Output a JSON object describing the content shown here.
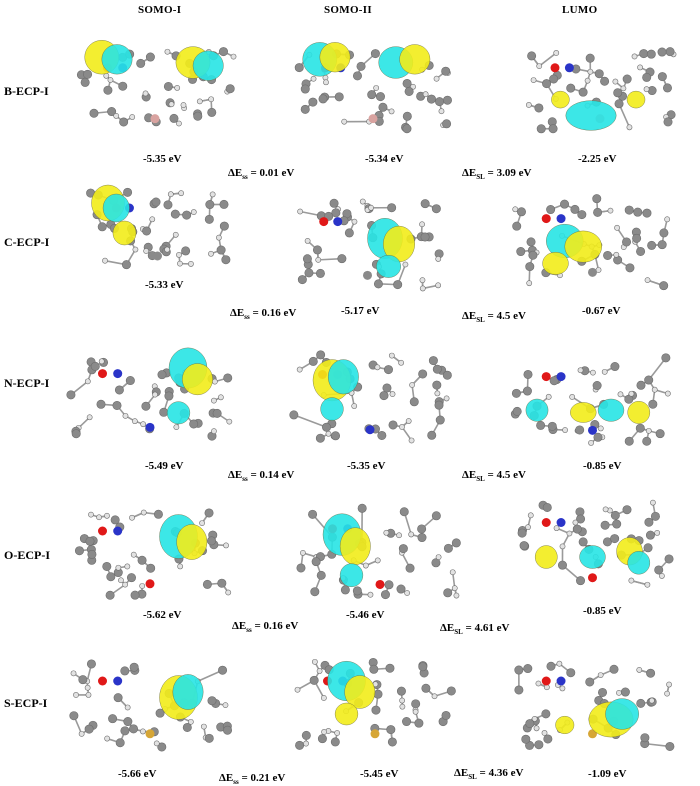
{
  "columns": [
    "SOMO-I",
    "SOMO-II",
    "LUMO"
  ],
  "colors": {
    "lobe_cyan": "#27e4e4",
    "lobe_yellow": "#f2ec1a",
    "carbon": "#8a8a8a",
    "hydrogen": "#e2e2e2",
    "oxygen": "#e01818",
    "nitrogen": "#2a34c8",
    "boron": "#d9a3a0",
    "sulfur": "#d6a636"
  },
  "rows": [
    {
      "label": "B-ECP-I",
      "energies": [
        "-5.35 eV",
        "-5.34 eV",
        "-2.25 eV"
      ],
      "dss": {
        "sym": "ΔE",
        "sub": "ss",
        "value": "= 0.01 eV"
      },
      "dsl": {
        "sym": "ΔE",
        "sub": "SL",
        "value": "= 3.09 eV"
      }
    },
    {
      "label": "C-ECP-I",
      "energies": [
        "-5.33 eV",
        "-5.17 eV",
        "-0.67 eV"
      ],
      "dss": {
        "sym": "ΔE",
        "sub": "ss",
        "value": "= 0.16 eV"
      },
      "dsl": {
        "sym": "ΔE",
        "sub": "SL",
        "value": "= 4.5 eV"
      }
    },
    {
      "label": "N-ECP-I",
      "energies": [
        "-5.49 eV",
        "-5.35 eV",
        "-0.85 eV"
      ],
      "dss": {
        "sym": "ΔE",
        "sub": "ss",
        "value": "= 0.14 eV"
      },
      "dsl": {
        "sym": "ΔE",
        "sub": "SL",
        "value": "= 4.5 eV"
      }
    },
    {
      "label": "O-ECP-I",
      "energies": [
        "-5.62 eV",
        "-5.46 eV",
        "-0.85 eV"
      ],
      "dss": {
        "sym": "ΔE",
        "sub": "ss",
        "value": "= 0.16 eV"
      },
      "dsl": {
        "sym": "ΔE",
        "sub": "SL",
        "value": "= 4.61 eV"
      }
    },
    {
      "label": "S-ECP-I",
      "energies": [
        "-5.66 eV",
        "-5.45 eV",
        "-1.09 eV"
      ],
      "dss": {
        "sym": "ΔE",
        "sub": "ss",
        "value": "= 0.21 eV"
      },
      "dsl": {
        "sym": "ΔE",
        "sub": "SL",
        "value": "= 4.36 eV"
      }
    }
  ]
}
